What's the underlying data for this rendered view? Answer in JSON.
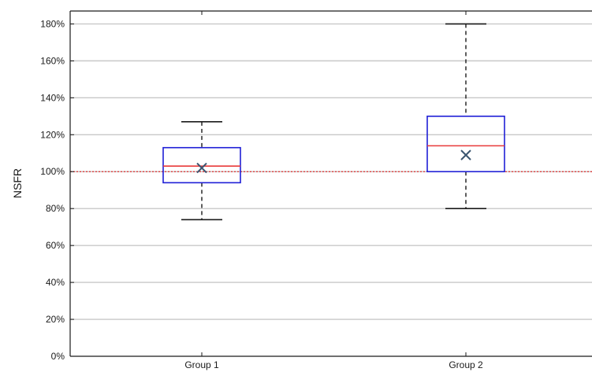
{
  "chart_data": {
    "type": "box",
    "ylabel": "NSFR",
    "xlabel": "",
    "title": "",
    "ylim": [
      0,
      1.87
    ],
    "y_ticks": [
      0,
      0.2,
      0.4,
      0.6,
      0.8,
      1.0,
      1.2,
      1.4,
      1.6,
      1.8
    ],
    "y_tick_labels": [
      "0%",
      "20%",
      "40%",
      "60%",
      "80%",
      "100%",
      "120%",
      "140%",
      "160%",
      "180%"
    ],
    "grid": "horizontal",
    "categories": [
      "Group 1",
      "Group 2"
    ],
    "boxes": [
      {
        "category": "Group 1",
        "whisker_low": 0.74,
        "q1": 0.94,
        "median": 1.03,
        "q3": 1.13,
        "whisker_high": 1.27,
        "mean": 1.02
      },
      {
        "category": "Group 2",
        "whisker_low": 0.8,
        "q1": 1.0,
        "median": 1.14,
        "q3": 1.3,
        "whisker_high": 1.8,
        "mean": 1.09
      }
    ],
    "reference_line": {
      "value": 1.0,
      "style": "dotted",
      "color": "#e03030"
    },
    "colors": {
      "box": "#1f1fd6",
      "median": "#e83a3a",
      "mean_marker": "#3b5570",
      "whisker": "#1a1a1a",
      "grid": "#c8c8c8"
    }
  }
}
